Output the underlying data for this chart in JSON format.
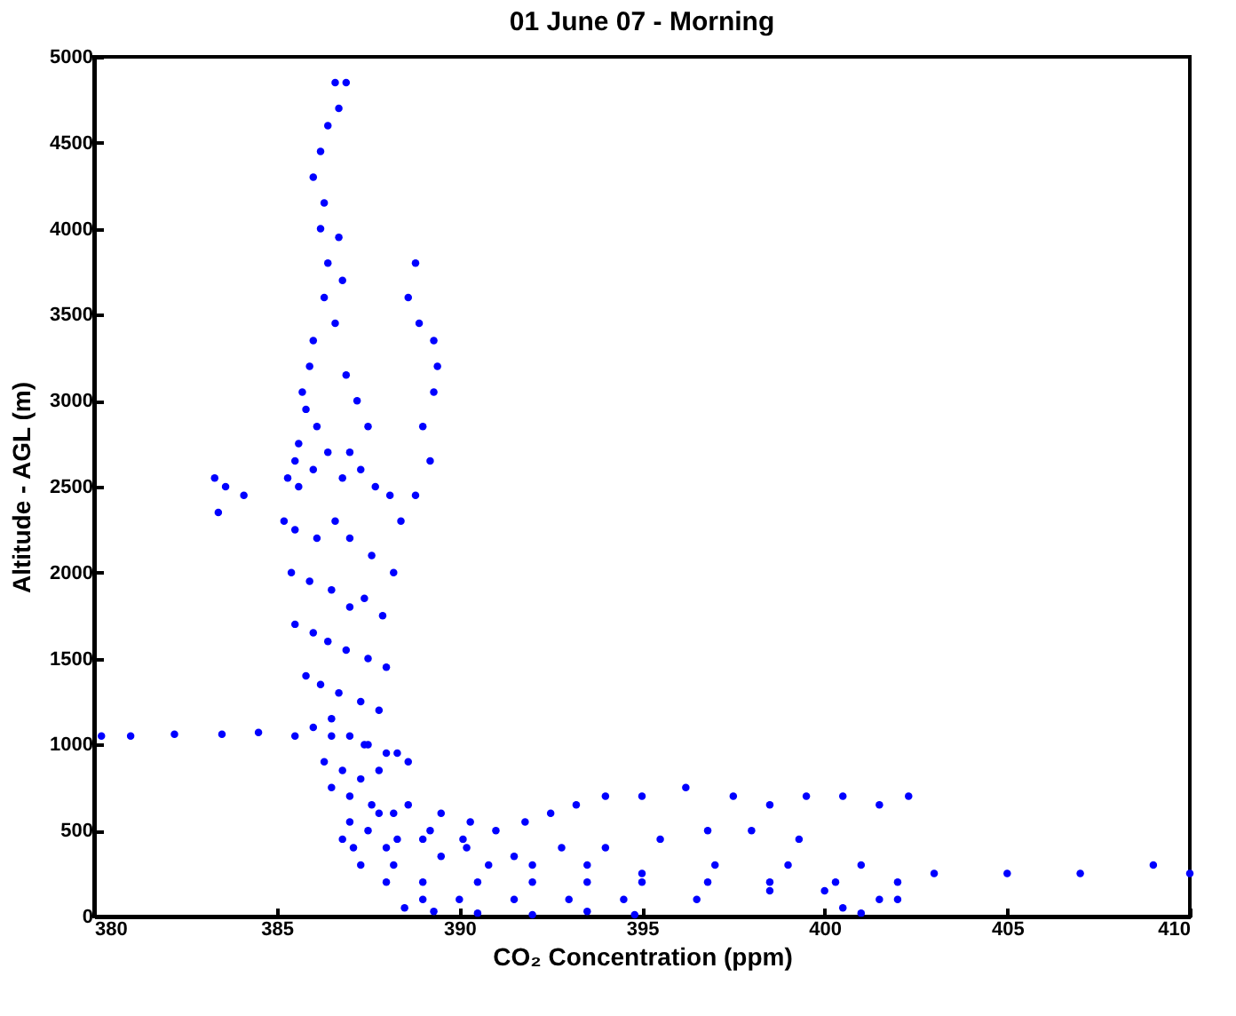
{
  "chart_data": {
    "type": "scatter",
    "title": "01 June 07 - Morning",
    "xlabel": "CO₂ Concentration (ppm)",
    "ylabel": "Altitude - AGL (m)",
    "xlim": [
      380,
      410
    ],
    "xticks": [
      380,
      385,
      390,
      395,
      400,
      405,
      410
    ],
    "ylim": [
      0,
      5000
    ],
    "yticks": [
      0,
      500,
      1000,
      1500,
      2000,
      2500,
      3000,
      3500,
      4000,
      4500,
      5000
    ],
    "grid": false,
    "marker": "circle",
    "series": [
      {
        "color": "#0000ff",
        "x": [
          386.6,
          386.9,
          386.7,
          386.4,
          386.2,
          386.0,
          386.3,
          386.2,
          386.7,
          386.4,
          386.8,
          386.3,
          386.6,
          386.0,
          385.9,
          385.7,
          385.8,
          386.1,
          385.6,
          385.5,
          386.9,
          387.2,
          387.5,
          387.0,
          388.8,
          388.6,
          388.9,
          389.3,
          389.4,
          389.3,
          389.0,
          389.2,
          388.8,
          388.4,
          383.3,
          383.6,
          384.1,
          383.4,
          385.3,
          385.6,
          386.0,
          386.4,
          386.8,
          387.3,
          387.7,
          388.1,
          385.2,
          385.5,
          386.1,
          386.6,
          387.0,
          387.6,
          388.2,
          385.4,
          385.9,
          386.5,
          387.0,
          387.4,
          387.9,
          385.5,
          386.0,
          386.4,
          386.9,
          387.5,
          388.0,
          385.8,
          386.2,
          386.7,
          387.3,
          387.8,
          386.0,
          386.5,
          387.0,
          387.5,
          388.3,
          386.3,
          386.8,
          387.3,
          387.8,
          386.5,
          387.0,
          387.6,
          388.2,
          380.2,
          381.0,
          382.2,
          383.5,
          384.5,
          385.5,
          386.5,
          387.4,
          388.0,
          388.6,
          387.0,
          387.8,
          388.6,
          389.5,
          390.3,
          386.8,
          387.5,
          388.3,
          389.2,
          390.1,
          391.0,
          391.8,
          392.5,
          393.2,
          394.0,
          395.0,
          396.2,
          397.5,
          398.5,
          399.5,
          400.5,
          401.5,
          402.3,
          387.1,
          388.0,
          389.0,
          390.2,
          391.5,
          392.8,
          394.0,
          395.5,
          396.8,
          398.0,
          399.3,
          387.3,
          388.2,
          389.5,
          390.8,
          392.0,
          393.5,
          395.0,
          397.0,
          399.0,
          401.0,
          403.0,
          405.0,
          407.0,
          409.0,
          410.0,
          388.0,
          389.0,
          390.5,
          392.0,
          393.5,
          395.0,
          396.8,
          398.5,
          400.3,
          402.0,
          389.0,
          390.0,
          391.5,
          393.0,
          394.5,
          396.5,
          398.5,
          400.0,
          401.5,
          402.0,
          388.5,
          389.3,
          390.5,
          392.0,
          393.5,
          394.8,
          400.5,
          401.0
        ],
        "values": [
          4850,
          4850,
          4700,
          4600,
          4450,
          4300,
          4150,
          4000,
          3950,
          3800,
          3700,
          3600,
          3450,
          3350,
          3200,
          3050,
          2950,
          2850,
          2750,
          2650,
          3150,
          3000,
          2850,
          2700,
          3800,
          3600,
          3450,
          3350,
          3200,
          3050,
          2850,
          2650,
          2450,
          2300,
          2550,
          2500,
          2450,
          2350,
          2550,
          2500,
          2600,
          2700,
          2550,
          2600,
          2500,
          2450,
          2300,
          2250,
          2200,
          2300,
          2200,
          2100,
          2000,
          2000,
          1950,
          1900,
          1800,
          1850,
          1750,
          1700,
          1650,
          1600,
          1550,
          1500,
          1450,
          1400,
          1350,
          1300,
          1250,
          1200,
          1100,
          1150,
          1050,
          1000,
          950,
          900,
          850,
          800,
          850,
          750,
          700,
          650,
          600,
          1050,
          1050,
          1060,
          1060,
          1070,
          1050,
          1050,
          1000,
          950,
          900,
          550,
          600,
          650,
          600,
          550,
          450,
          500,
          450,
          500,
          450,
          500,
          550,
          600,
          650,
          700,
          700,
          750,
          700,
          650,
          700,
          700,
          650,
          700,
          400,
          400,
          450,
          400,
          350,
          400,
          400,
          450,
          500,
          500,
          450,
          300,
          300,
          350,
          300,
          300,
          300,
          250,
          300,
          300,
          300,
          250,
          250,
          250,
          300,
          250,
          200,
          200,
          200,
          200,
          200,
          200,
          200,
          200,
          200,
          200,
          100,
          100,
          100,
          100,
          100,
          100,
          150,
          150,
          100,
          100,
          50,
          30,
          20,
          10,
          30,
          10,
          50,
          20
        ]
      }
    ]
  }
}
